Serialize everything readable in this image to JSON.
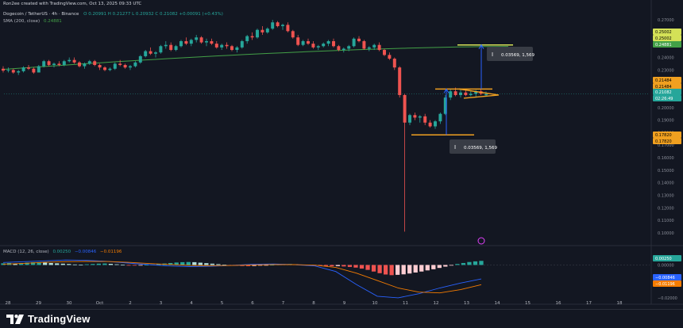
{
  "header": {
    "credit": "Ron2ee created with TradingView.com, Oct 13, 2025 09:33 UTC",
    "symbol_line": "Dogecoin / TetherUS · 4h · Binance",
    "ohlc": "O 0.20991  H 0.21277  L 0.20932  C 0.21082  +0.00091 (+0.43%)",
    "sma_line": "SMA (200, close)",
    "sma_value": "0.24881"
  },
  "macd_label": {
    "name": "MACD (12, 26, close)",
    "v1": "0.00250",
    "v2": "−0.00846",
    "v3": "−0.01196"
  },
  "branding": {
    "name": "TradingView"
  },
  "colors": {
    "bg": "#131722",
    "up": "#26a69a",
    "down": "#ef5350",
    "sma": "#43a047",
    "pattern": "#f0a020",
    "target": "#d4e157",
    "arrow": "#2962ff",
    "macd_line": "#2962ff",
    "signal_line": "#f57c00"
  },
  "measure_labels": [
    {
      "text": "0.03569, 1,569"
    },
    {
      "text": "0.03569, 1,569"
    }
  ],
  "chart_data": [
    {
      "type": "candlestick",
      "title": "Dogecoin / TetherUS · 4h · Binance",
      "x_ticks": [
        "28",
        "29",
        "30",
        "Oct",
        "2",
        "3",
        "4",
        "5",
        "6",
        "7",
        "8",
        "9",
        "10",
        "11",
        "12",
        "13",
        "14",
        "15",
        "16",
        "17",
        "18"
      ],
      "y_ticks": [
        "0.27000",
        "0.26000",
        "0.25000",
        "0.24000",
        "0.23000",
        "0.22000",
        "0.21000",
        "0.20000",
        "0.19000",
        "0.18000",
        "0.17000",
        "0.16000",
        "0.15000",
        "0.14000",
        "0.13000",
        "0.12000",
        "0.11000",
        "0.10000"
      ],
      "ylim": [
        0.093,
        0.277
      ],
      "candles_ohlc": [
        [
          0.231,
          0.233,
          0.228,
          0.2295
        ],
        [
          0.2295,
          0.232,
          0.228,
          0.23
        ],
        [
          0.23,
          0.231,
          0.227,
          0.228
        ],
        [
          0.228,
          0.23,
          0.226,
          0.229
        ],
        [
          0.229,
          0.233,
          0.228,
          0.232
        ],
        [
          0.232,
          0.234,
          0.23,
          0.231
        ],
        [
          0.231,
          0.232,
          0.227,
          0.228
        ],
        [
          0.228,
          0.234,
          0.228,
          0.233
        ],
        [
          0.233,
          0.238,
          0.232,
          0.237
        ],
        [
          0.237,
          0.238,
          0.233,
          0.234
        ],
        [
          0.234,
          0.236,
          0.232,
          0.235
        ],
        [
          0.235,
          0.237,
          0.233,
          0.234
        ],
        [
          0.234,
          0.238,
          0.233,
          0.237
        ],
        [
          0.237,
          0.24,
          0.236,
          0.238
        ],
        [
          0.238,
          0.24,
          0.235,
          0.236
        ],
        [
          0.236,
          0.237,
          0.232,
          0.233
        ],
        [
          0.233,
          0.236,
          0.231,
          0.235
        ],
        [
          0.235,
          0.238,
          0.234,
          0.237
        ],
        [
          0.237,
          0.238,
          0.233,
          0.234
        ],
        [
          0.234,
          0.235,
          0.23,
          0.232
        ],
        [
          0.232,
          0.233,
          0.229,
          0.23
        ],
        [
          0.23,
          0.232,
          0.229,
          0.231
        ],
        [
          0.231,
          0.236,
          0.23,
          0.235
        ],
        [
          0.235,
          0.238,
          0.233,
          0.234
        ],
        [
          0.234,
          0.235,
          0.231,
          0.232
        ],
        [
          0.232,
          0.234,
          0.23,
          0.233
        ],
        [
          0.233,
          0.237,
          0.232,
          0.236
        ],
        [
          0.236,
          0.242,
          0.235,
          0.241
        ],
        [
          0.241,
          0.246,
          0.24,
          0.245
        ],
        [
          0.245,
          0.248,
          0.242,
          0.243
        ],
        [
          0.243,
          0.245,
          0.24,
          0.244
        ],
        [
          0.244,
          0.25,
          0.243,
          0.249
        ],
        [
          0.249,
          0.253,
          0.247,
          0.25
        ],
        [
          0.25,
          0.252,
          0.245,
          0.246
        ],
        [
          0.246,
          0.25,
          0.245,
          0.249
        ],
        [
          0.249,
          0.254,
          0.248,
          0.253
        ],
        [
          0.253,
          0.256,
          0.25,
          0.251
        ],
        [
          0.251,
          0.255,
          0.249,
          0.254
        ],
        [
          0.254,
          0.258,
          0.252,
          0.256
        ],
        [
          0.256,
          0.257,
          0.251,
          0.252
        ],
        [
          0.252,
          0.255,
          0.249,
          0.253
        ],
        [
          0.253,
          0.255,
          0.25,
          0.251
        ],
        [
          0.251,
          0.253,
          0.247,
          0.248
        ],
        [
          0.248,
          0.251,
          0.246,
          0.25
        ],
        [
          0.25,
          0.252,
          0.247,
          0.249
        ],
        [
          0.249,
          0.25,
          0.245,
          0.246
        ],
        [
          0.246,
          0.249,
          0.244,
          0.248
        ],
        [
          0.248,
          0.254,
          0.247,
          0.253
        ],
        [
          0.253,
          0.258,
          0.251,
          0.257
        ],
        [
          0.257,
          0.26,
          0.254,
          0.256
        ],
        [
          0.256,
          0.263,
          0.255,
          0.262
        ],
        [
          0.262,
          0.265,
          0.258,
          0.26
        ],
        [
          0.26,
          0.264,
          0.259,
          0.263
        ],
        [
          0.263,
          0.27,
          0.262,
          0.268
        ],
        [
          0.268,
          0.269,
          0.264,
          0.265
        ],
        [
          0.265,
          0.267,
          0.262,
          0.266
        ],
        [
          0.266,
          0.268,
          0.26,
          0.261
        ],
        [
          0.261,
          0.262,
          0.255,
          0.256
        ],
        [
          0.256,
          0.258,
          0.249,
          0.25
        ],
        [
          0.25,
          0.254,
          0.249,
          0.253
        ],
        [
          0.253,
          0.255,
          0.25,
          0.251
        ],
        [
          0.251,
          0.253,
          0.247,
          0.248
        ],
        [
          0.248,
          0.25,
          0.246,
          0.249
        ],
        [
          0.249,
          0.252,
          0.248,
          0.251
        ],
        [
          0.251,
          0.254,
          0.249,
          0.253
        ],
        [
          0.253,
          0.255,
          0.248,
          0.249
        ],
        [
          0.249,
          0.25,
          0.245,
          0.246
        ],
        [
          0.246,
          0.248,
          0.244,
          0.247
        ],
        [
          0.247,
          0.25,
          0.245,
          0.249
        ],
        [
          0.249,
          0.256,
          0.248,
          0.255
        ],
        [
          0.255,
          0.257,
          0.252,
          0.253
        ],
        [
          0.253,
          0.254,
          0.246,
          0.247
        ],
        [
          0.247,
          0.249,
          0.245,
          0.248
        ],
        [
          0.248,
          0.251,
          0.246,
          0.25
        ],
        [
          0.25,
          0.252,
          0.245,
          0.246
        ],
        [
          0.246,
          0.247,
          0.241,
          0.242
        ],
        [
          0.242,
          0.244,
          0.238,
          0.239
        ],
        [
          0.239,
          0.24,
          0.23,
          0.232
        ],
        [
          0.232,
          0.233,
          0.208,
          0.21
        ],
        [
          0.21,
          0.211,
          0.101,
          0.188
        ],
        [
          0.188,
          0.195,
          0.186,
          0.194
        ],
        [
          0.194,
          0.196,
          0.19,
          0.192
        ],
        [
          0.192,
          0.194,
          0.188,
          0.193
        ],
        [
          0.193,
          0.195,
          0.186,
          0.188
        ],
        [
          0.188,
          0.19,
          0.184,
          0.185
        ],
        [
          0.185,
          0.19,
          0.183,
          0.189
        ],
        [
          0.189,
          0.196,
          0.187,
          0.195
        ],
        [
          0.195,
          0.21,
          0.194,
          0.208
        ],
        [
          0.208,
          0.215,
          0.206,
          0.213
        ],
        [
          0.213,
          0.216,
          0.209,
          0.21
        ],
        [
          0.21,
          0.214,
          0.208,
          0.212
        ],
        [
          0.212,
          0.215,
          0.209,
          0.21
        ],
        [
          0.21,
          0.213,
          0.209,
          0.211
        ],
        [
          0.211,
          0.214,
          0.208,
          0.213
        ],
        [
          0.213,
          0.215,
          0.21,
          0.211
        ],
        [
          0.2099,
          0.2128,
          0.2093,
          0.2108
        ]
      ],
      "sma_200": {
        "name": "SMA (200, close)",
        "start": 0.2305,
        "end": 0.2488
      },
      "annotations": {
        "target_level": 0.25,
        "target_level_2": 0.2488,
        "resistance": 0.2148,
        "support": 0.1782,
        "wedge_top": 0.2148,
        "wedge_apex": 0.21,
        "pole_start": 0.1782,
        "pole_end": 0.2148,
        "measure_arrow_1": [
          0.2148,
          0.25
        ],
        "measure_arrow_2": [
          0.1782,
          0.2148
        ]
      },
      "price_tags": [
        {
          "label": "0.25002",
          "color": "#d4e157",
          "value": 0.25002
        },
        {
          "label": "0.25002",
          "color": "#d4e157",
          "value": 0.25002
        },
        {
          "label": "0.24881",
          "color": "#43a047",
          "value": 0.24881
        },
        {
          "label": "0.21484",
          "color": "#f0a020",
          "value": 0.21484
        },
        {
          "label": "0.21484",
          "color": "#f0a020",
          "value": 0.21484
        },
        {
          "label": "0.21082",
          "color": "#26a69a",
          "value": 0.21082
        },
        {
          "label": "02:26:49",
          "color": "#26a69a",
          "value": 0.2091
        },
        {
          "label": "0.17820",
          "color": "#f0a020",
          "value": 0.1782
        },
        {
          "label": "0.17820",
          "color": "#f0a020",
          "value": 0.1782
        }
      ]
    },
    {
      "type": "histogram",
      "title": "MACD (12, 26, close)",
      "y_ticks": [
        "0.00000",
        "−0.02000"
      ],
      "ylim": [
        -0.021,
        0.006
      ],
      "histogram": [
        0.001,
        0.0012,
        0.0009,
        0.0011,
        0.0014,
        0.0016,
        0.0017,
        0.0015,
        0.0012,
        0.001,
        0.0008,
        0.0006,
        0.0003,
        0.0002,
        0.0004,
        0.0006,
        0.0008,
        0.0009,
        0.0007,
        0.0004,
        0.0001,
        -0.0002,
        -0.0003,
        -0.0002,
        0.0001,
        0.0003,
        0.0006,
        0.0009,
        0.0012,
        0.0015,
        0.0017,
        0.0018,
        0.0017,
        0.0014,
        0.0011,
        0.0008,
        0.0005,
        0.0002,
        -0.0001,
        -0.0004,
        -0.0006,
        -0.0007,
        -0.0006,
        -0.0004,
        -0.0002,
        0.0001,
        0.0003,
        0.0005,
        0.0006,
        0.0004,
        0.0002,
        -0.0001,
        -0.0003,
        -0.0005,
        -0.0007,
        -0.0008,
        -0.0007,
        -0.0009,
        -0.0012,
        -0.0016,
        -0.0022,
        -0.003,
        -0.004,
        -0.005,
        -0.0058,
        -0.0062,
        -0.006,
        -0.0057,
        -0.0052,
        -0.0046,
        -0.004,
        -0.0033,
        -0.0026,
        -0.0018,
        -0.001,
        -0.0002,
        0.0006,
        0.0012,
        0.0018,
        0.0022,
        0.0025
      ],
      "macd": [
        0.0015,
        0.002,
        0.0025,
        0.003,
        0.0028,
        0.0022,
        0.0012,
        0.0002,
        -0.0006,
        -0.001,
        -0.0008,
        -0.0002,
        0.0004,
        0.0006,
        0.0002,
        -0.0006,
        -0.004,
        -0.012,
        -0.019,
        -0.02,
        -0.0175,
        -0.014,
        -0.011,
        -0.0085
      ],
      "signal": [
        0.0005,
        0.001,
        0.0016,
        0.002,
        0.0022,
        0.0021,
        0.0016,
        0.0009,
        0.0003,
        -0.0002,
        -0.0004,
        -0.0003,
        0.0,
        0.0002,
        0.0002,
        -0.0001,
        -0.0015,
        -0.005,
        -0.0095,
        -0.014,
        -0.0165,
        -0.017,
        -0.015,
        -0.012
      ],
      "price_tags": [
        {
          "label": "0.00250",
          "color": "#26a69a",
          "value": 0.0025
        },
        {
          "label": "−0.00846",
          "color": "#2962ff",
          "value": -0.0085
        },
        {
          "label": "−0.01196",
          "color": "#f57c00",
          "value": -0.012
        }
      ]
    }
  ]
}
